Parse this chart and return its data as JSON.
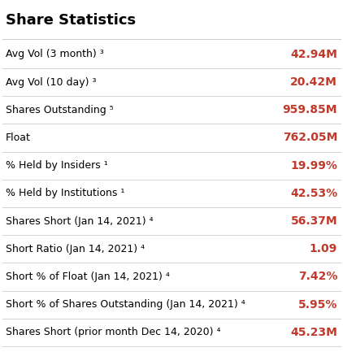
{
  "title": "Share Statistics",
  "rows": [
    {
      "label": "Avg Vol (3 month) ³",
      "value": "42.94M"
    },
    {
      "label": "Avg Vol (10 day) ³",
      "value": "20.42M"
    },
    {
      "label": "Shares Outstanding ⁵",
      "value": "959.85M"
    },
    {
      "label": "Float",
      "value": "762.05M"
    },
    {
      "label": "% Held by Insiders ¹",
      "value": "19.99%"
    },
    {
      "label": "% Held by Institutions ¹",
      "value": "42.53%"
    },
    {
      "label": "Shares Short (Jan 14, 2021) ⁴",
      "value": "56.37M"
    },
    {
      "label": "Short Ratio (Jan 14, 2021) ⁴",
      "value": "1.09"
    },
    {
      "label": "Short % of Float (Jan 14, 2021) ⁴",
      "value": "7.42%"
    },
    {
      "label": "Short % of Shares Outstanding (Jan 14, 2021) ⁴",
      "value": "5.95%"
    },
    {
      "label": "Shares Short (prior month Dec 14, 2020) ⁴",
      "value": "45.23M"
    }
  ],
  "bg_color": "#ffffff",
  "title_color": "#000000",
  "label_color": "#000000",
  "value_color": "#c0392b",
  "line_color": "#cccccc",
  "title_fontsize": 13,
  "label_fontsize": 9,
  "value_fontsize": 10
}
